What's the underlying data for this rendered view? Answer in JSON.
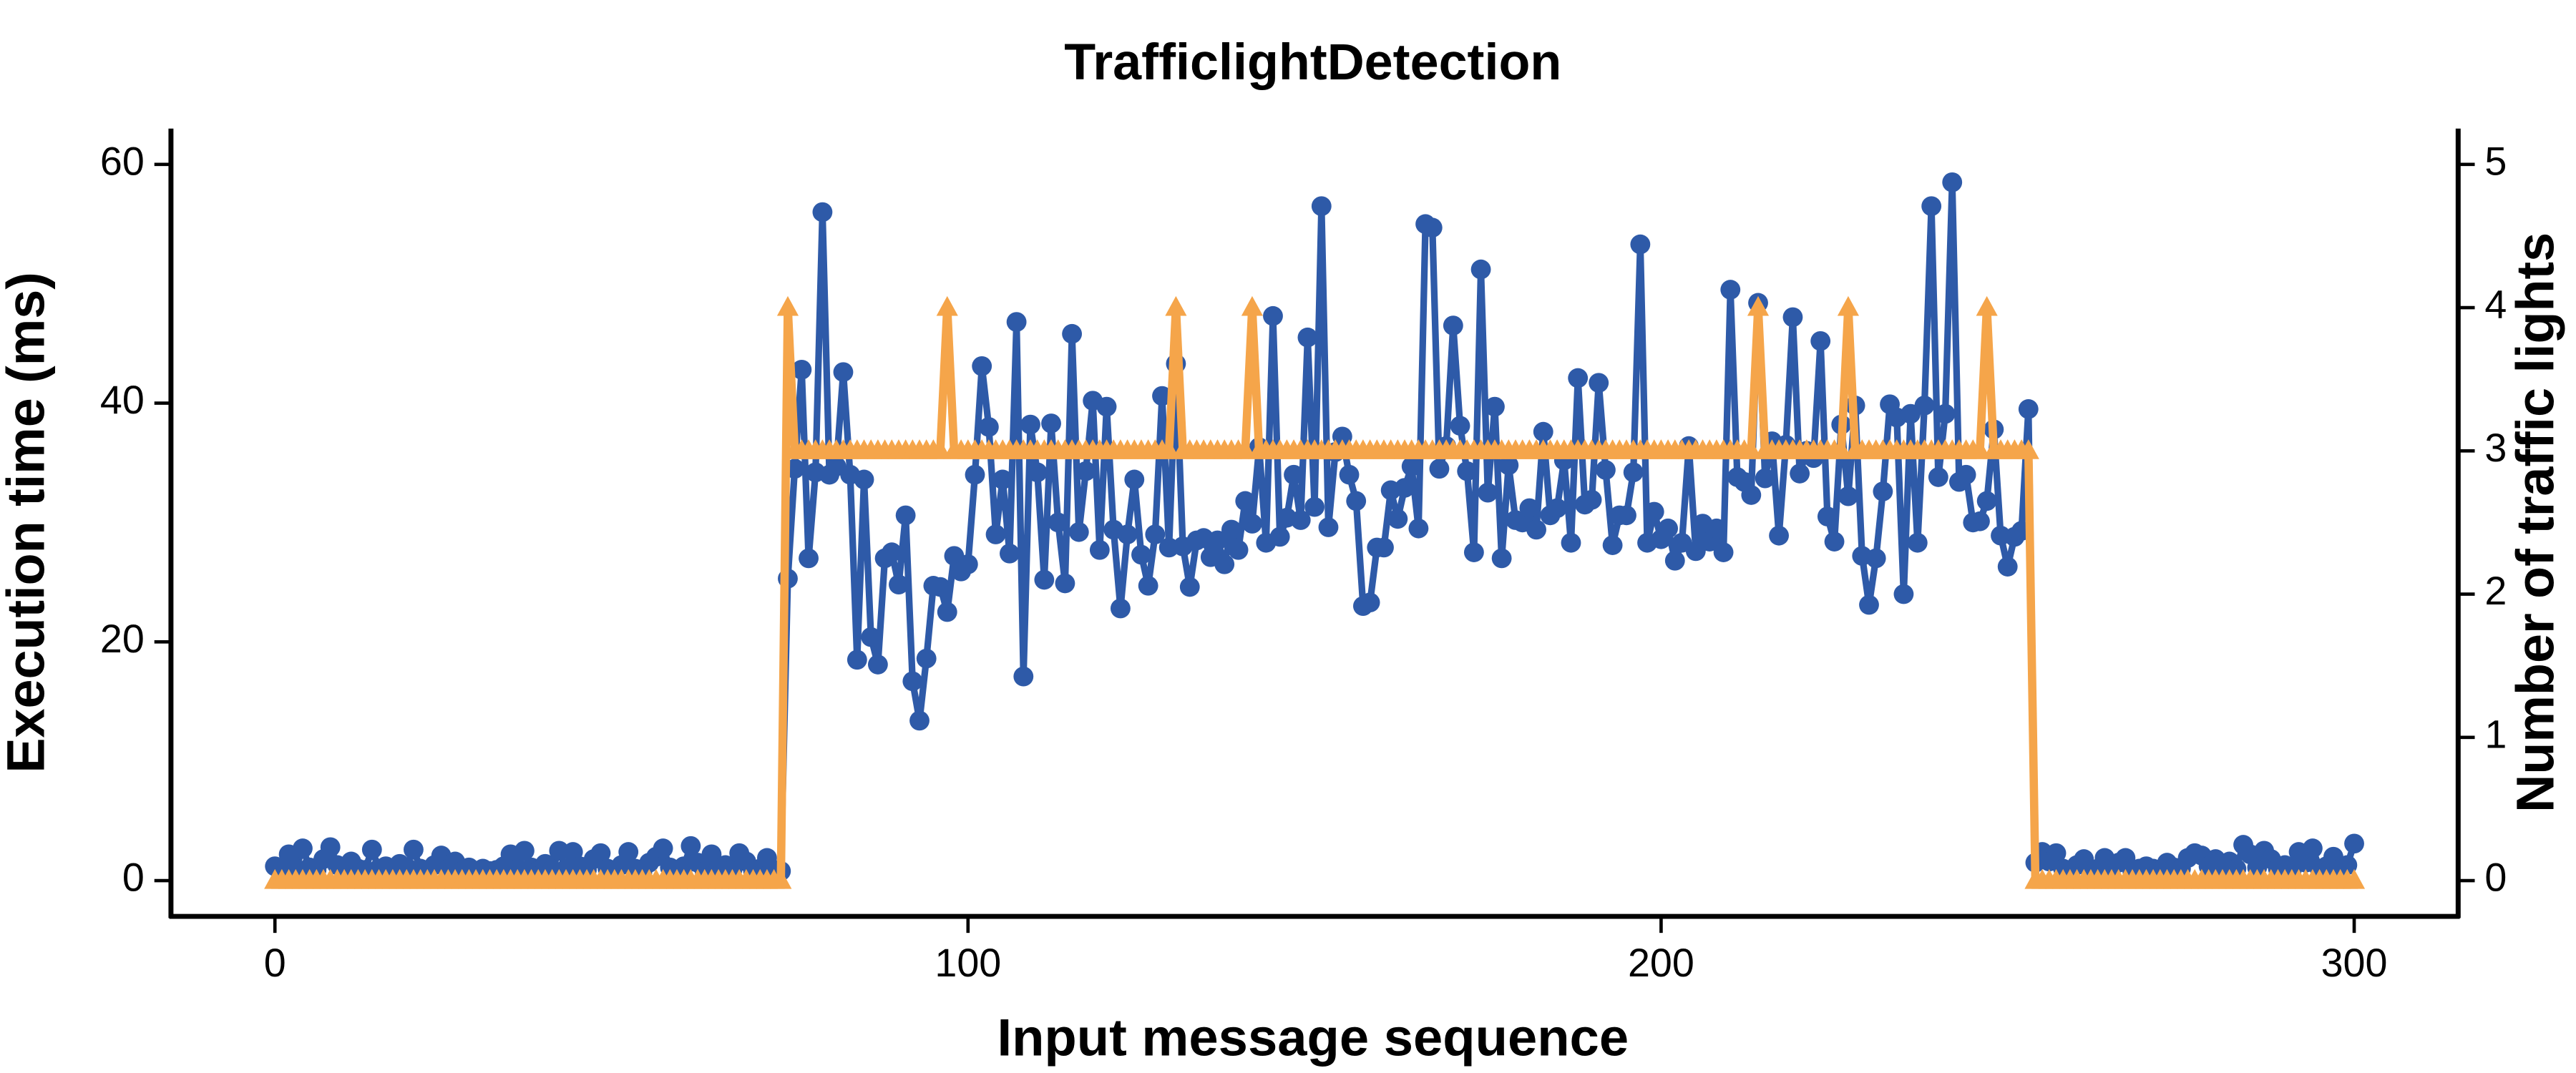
{
  "chart_data": {
    "type": "line",
    "title": "TrafficlightDetection",
    "x_label": "Input message sequence",
    "y_label": "Execution time (ms)",
    "y2_label": "Number of traffic lights",
    "xlim": [
      -15,
      315
    ],
    "xticks": [
      0,
      100,
      200,
      300
    ],
    "ylim": [
      -3,
      63
    ],
    "yticks": [
      0,
      20,
      40,
      60
    ],
    "y2lim": [
      -0.25,
      5.25
    ],
    "y2ticks": [
      0,
      1,
      2,
      3,
      4,
      5
    ],
    "x": [
      0,
      1,
      2,
      3,
      4,
      5,
      6,
      7,
      8,
      9,
      10,
      11,
      12,
      13,
      14,
      15,
      16,
      17,
      18,
      19,
      20,
      21,
      22,
      23,
      24,
      25,
      26,
      27,
      28,
      29,
      30,
      31,
      32,
      33,
      34,
      35,
      36,
      37,
      38,
      39,
      40,
      41,
      42,
      43,
      44,
      45,
      46,
      47,
      48,
      49,
      50,
      51,
      52,
      53,
      54,
      55,
      56,
      57,
      58,
      59,
      60,
      61,
      62,
      63,
      64,
      65,
      66,
      67,
      68,
      69,
      70,
      71,
      72,
      73,
      74,
      75,
      76,
      77,
      78,
      79,
      80,
      81,
      82,
      83,
      84,
      85,
      86,
      87,
      88,
      89,
      90,
      91,
      92,
      93,
      94,
      95,
      96,
      97,
      98,
      99,
      100,
      101,
      102,
      103,
      104,
      105,
      106,
      107,
      108,
      109,
      110,
      111,
      112,
      113,
      114,
      115,
      116,
      117,
      118,
      119,
      120,
      121,
      122,
      123,
      124,
      125,
      126,
      127,
      128,
      129,
      130,
      131,
      132,
      133,
      134,
      135,
      136,
      137,
      138,
      139,
      140,
      141,
      142,
      143,
      144,
      145,
      146,
      147,
      148,
      149,
      150,
      151,
      152,
      153,
      154,
      155,
      156,
      157,
      158,
      159,
      160,
      161,
      162,
      163,
      164,
      165,
      166,
      167,
      168,
      169,
      170,
      171,
      172,
      173,
      174,
      175,
      176,
      177,
      178,
      179,
      180,
      181,
      182,
      183,
      184,
      185,
      186,
      187,
      188,
      189,
      190,
      191,
      192,
      193,
      194,
      195,
      196,
      197,
      198,
      199,
      200,
      201,
      202,
      203,
      204,
      205,
      206,
      207,
      208,
      209,
      210,
      211,
      212,
      213,
      214,
      215,
      216,
      217,
      218,
      219,
      220,
      221,
      222,
      223,
      224,
      225,
      226,
      227,
      228,
      229,
      230,
      231,
      232,
      233,
      234,
      235,
      236,
      237,
      238,
      239,
      240,
      241,
      242,
      243,
      244,
      245,
      246,
      247,
      248,
      249,
      250,
      251,
      252,
      253,
      254,
      255,
      256,
      257,
      258,
      259,
      260,
      261,
      262,
      263,
      264,
      265,
      266,
      267,
      268,
      269,
      270,
      271,
      272,
      273,
      274,
      275,
      276,
      277,
      278,
      279,
      280,
      281,
      282,
      283,
      284,
      285,
      286,
      287,
      288,
      289,
      290,
      291,
      292,
      293,
      294,
      295,
      296,
      297,
      298,
      299,
      300
    ],
    "series": [
      {
        "color": "#2e5aa8",
        "marker": "circle",
        "values": [
          1.2,
          0.8,
          2.2,
          1.0,
          2.7,
          1.1,
          0.9,
          1.8,
          2.8,
          1.3,
          0.7,
          1.6,
          1.0,
          0.9,
          2.6,
          1.0,
          1.2,
          0.8,
          1.4,
          1.1,
          2.6,
          1.0,
          0.9,
          1.3,
          2.1,
          1.0,
          1.6,
          0.8,
          1.1,
          0.7,
          1.0,
          0.8,
          0.9,
          1.2,
          2.2,
          1.0,
          2.5,
          1.1,
          0.8,
          1.4,
          0.9,
          2.5,
          1.0,
          2.4,
          1.2,
          0.9,
          1.8,
          2.3,
          1.0,
          0.8,
          1.3,
          2.4,
          1.0,
          0.7,
          1.5,
          2.0,
          2.7,
          1.1,
          0.9,
          1.2,
          2.9,
          1.5,
          0.8,
          2.2,
          1.0,
          1.3,
          0.9,
          2.3,
          1.6,
          0.8,
          1.0,
          1.9,
          0.9,
          0.8,
          25.3,
          34.5,
          42.8,
          27.0,
          34.2,
          56.0,
          34.0,
          34.7,
          42.6,
          34.0,
          18.5,
          33.6,
          20.4,
          18.1,
          27.0,
          27.5,
          24.8,
          30.6,
          16.7,
          13.4,
          18.6,
          24.7,
          24.6,
          22.5,
          27.2,
          25.9,
          26.5,
          34.0,
          43.1,
          38.0,
          29.0,
          33.6,
          27.4,
          46.8,
          17.1,
          38.2,
          34.2,
          25.2,
          38.3,
          30.0,
          24.9,
          45.8,
          29.2,
          34.3,
          40.2,
          27.7,
          39.7,
          29.4,
          22.8,
          29.0,
          33.6,
          27.3,
          24.7,
          29.0,
          40.6,
          27.9,
          43.3,
          28.0,
          24.6,
          28.5,
          28.7,
          27.1,
          28.5,
          26.5,
          29.4,
          27.7,
          31.8,
          29.9,
          36.3,
          28.3,
          47.3,
          28.8,
          30.4,
          34.0,
          30.2,
          45.5,
          31.3,
          56.5,
          29.6,
          35.9,
          37.2,
          34.0,
          31.8,
          23.0,
          23.3,
          27.9,
          27.9,
          32.7,
          30.3,
          32.9,
          34.7,
          29.5,
          55.0,
          54.7,
          34.5,
          36.4,
          46.5,
          38.1,
          34.3,
          27.5,
          51.2,
          32.5,
          39.7,
          27.0,
          34.8,
          30.2,
          30.0,
          31.2,
          29.4,
          37.6,
          30.6,
          31.2,
          35.2,
          28.3,
          42.1,
          31.5,
          31.9,
          41.7,
          34.4,
          28.1,
          30.6,
          30.6,
          34.2,
          53.3,
          28.3,
          30.9,
          28.6,
          29.5,
          26.8,
          28.3,
          36.4,
          27.6,
          29.9,
          28.4,
          29.5,
          27.5,
          49.5,
          33.8,
          33.4,
          32.3,
          48.4,
          33.7,
          36.8,
          28.9,
          36.5,
          47.2,
          34.1,
          36.0,
          35.4,
          45.2,
          30.5,
          28.4,
          38.2,
          32.2,
          39.8,
          27.2,
          23.1,
          27.0,
          32.6,
          39.9,
          38.8,
          24.0,
          39.1,
          28.3,
          39.8,
          56.5,
          33.8,
          39.1,
          58.5,
          33.4,
          34.0,
          30.0,
          30.1,
          31.8,
          37.8,
          28.9,
          26.3,
          28.8,
          29.3,
          39.5,
          1.5,
          2.4,
          1.6,
          2.3,
          1.0,
          0.9,
          1.3,
          1.8,
          0.9,
          1.0,
          1.9,
          1.1,
          1.5,
          1.9,
          0.8,
          1.0,
          1.2,
          1.0,
          0.8,
          1.5,
          1.1,
          1.0,
          1.9,
          2.3,
          2.1,
          1.2,
          1.8,
          1.0,
          1.6,
          1.0,
          3.0,
          2.2,
          1.1,
          2.5,
          1.8,
          1.0,
          1.3,
          0.9,
          2.4,
          1.5,
          2.7,
          1.0,
          1.2,
          2.0,
          1.0,
          1.3,
          3.1
        ]
      },
      {
        "color": "#f5a54a",
        "marker": "triangle",
        "axis": "y2",
        "values": [
          0,
          0,
          0,
          0,
          0,
          0,
          0,
          0,
          0,
          0,
          0,
          0,
          0,
          0,
          0,
          0,
          0,
          0,
          0,
          0,
          0,
          0,
          0,
          0,
          0,
          0,
          0,
          0,
          0,
          0,
          0,
          0,
          0,
          0,
          0,
          0,
          0,
          0,
          0,
          0,
          0,
          0,
          0,
          0,
          0,
          0,
          0,
          0,
          0,
          0,
          0,
          0,
          0,
          0,
          0,
          0,
          0,
          0,
          0,
          0,
          0,
          0,
          0,
          0,
          0,
          0,
          0,
          0,
          0,
          0,
          0,
          0,
          0,
          0,
          4,
          3,
          3,
          3,
          3,
          3,
          3,
          3,
          3,
          3,
          3,
          3,
          3,
          3,
          3,
          3,
          3,
          3,
          3,
          3,
          3,
          3,
          3,
          4,
          3,
          3,
          3,
          3,
          3,
          3,
          3,
          3,
          3,
          3,
          3,
          3,
          3,
          3,
          3,
          3,
          3,
          3,
          3,
          3,
          3,
          3,
          3,
          3,
          3,
          3,
          3,
          3,
          3,
          3,
          3,
          3,
          4,
          3,
          3,
          3,
          3,
          3,
          3,
          3,
          3,
          3,
          3,
          4,
          3,
          3,
          3,
          3,
          3,
          3,
          3,
          3,
          3,
          3,
          3,
          3,
          3,
          3,
          3,
          3,
          3,
          3,
          3,
          3,
          3,
          3,
          3,
          3,
          3,
          3,
          3,
          3,
          3,
          3,
          3,
          3,
          3,
          3,
          3,
          3,
          3,
          3,
          3,
          3,
          3,
          3,
          3,
          3,
          3,
          3,
          3,
          3,
          3,
          3,
          3,
          3,
          3,
          3,
          3,
          3,
          3,
          3,
          3,
          3,
          3,
          3,
          3,
          3,
          3,
          3,
          3,
          3,
          3,
          3,
          3,
          3,
          4,
          3,
          3,
          3,
          3,
          3,
          3,
          3,
          3,
          3,
          3,
          3,
          3,
          4,
          3,
          3,
          3,
          3,
          3,
          3,
          3,
          3,
          3,
          3,
          3,
          3,
          3,
          3,
          3,
          3,
          3,
          3,
          3,
          4,
          3,
          3,
          3,
          3,
          3,
          3,
          0,
          0,
          0,
          0,
          0,
          0,
          0,
          0,
          0,
          0,
          0,
          0,
          0,
          0,
          0,
          0,
          0,
          0,
          0,
          0,
          0,
          0,
          0,
          0,
          0,
          0,
          0,
          0,
          0,
          0,
          0,
          0,
          0,
          0,
          0,
          0,
          0,
          0,
          0,
          0,
          0,
          0,
          0,
          0,
          0,
          0,
          0
        ]
      }
    ]
  }
}
